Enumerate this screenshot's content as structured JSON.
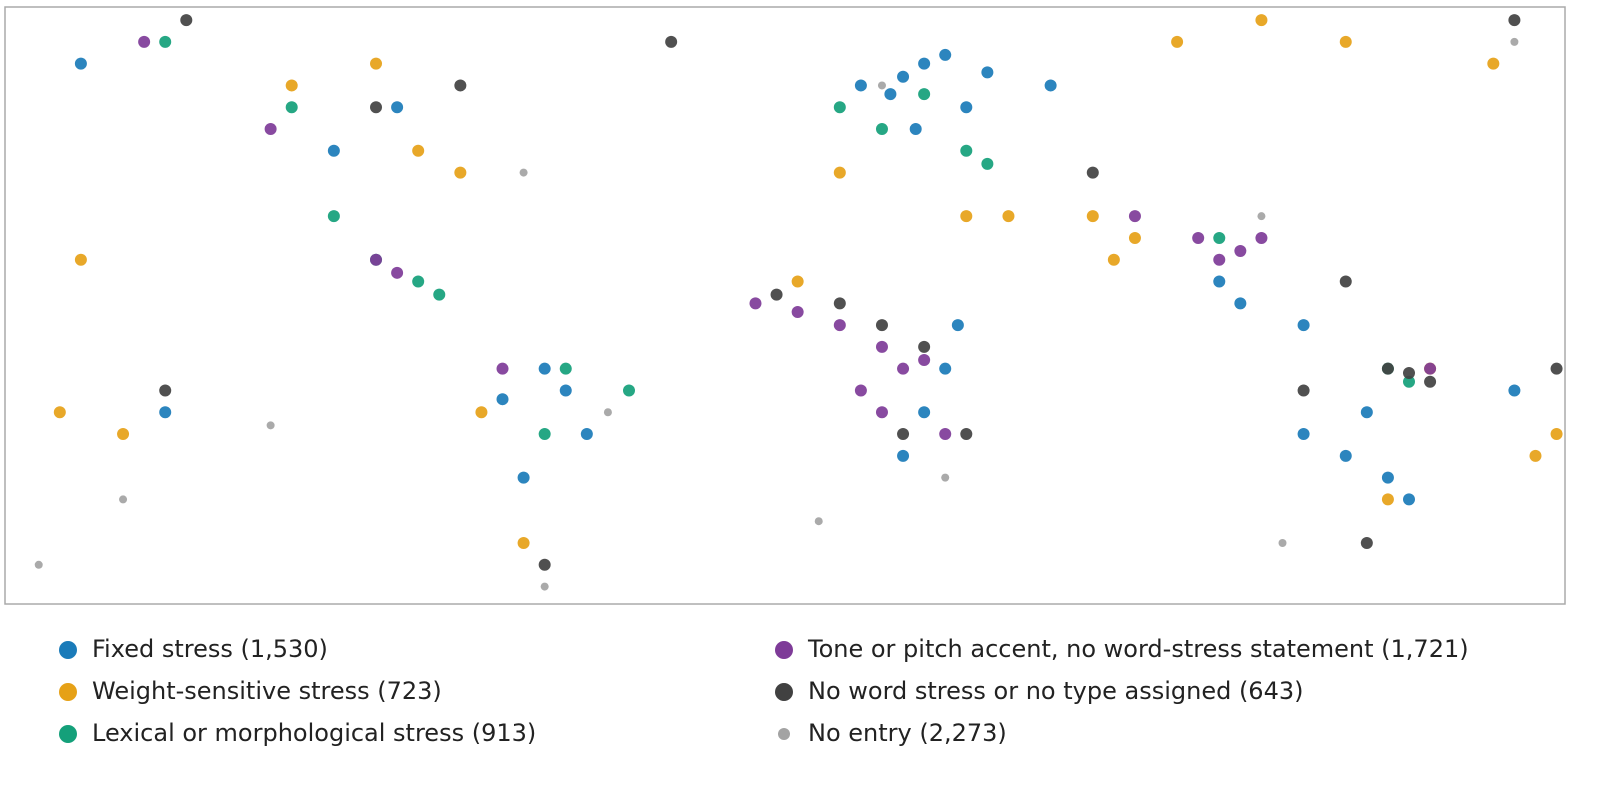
{
  "chart_data": {
    "type": "scatter",
    "xlim": [
      -188,
      182
    ],
    "ylim": [
      -59,
      78
    ],
    "series": [
      {
        "name": "Fixed stress (1,530)",
        "color": "#1a7bb9",
        "size": 6,
        "x": [
          25,
          30,
          22,
          40,
          35,
          15,
          28,
          60,
          45,
          35,
          30,
          38,
          25,
          -60,
          -50,
          -65,
          -55,
          -70,
          130,
          140,
          120,
          135,
          145,
          105,
          100,
          120,
          -150,
          170,
          -110,
          -95,
          -170
        ],
        "y": [
          62,
          65,
          58,
          55,
          67,
          60,
          50,
          60,
          63,
          -5,
          -15,
          5,
          -25,
          -5,
          -20,
          -30,
          -10,
          -12,
          -25,
          -30,
          -20,
          -15,
          -35,
          10,
          15,
          5,
          -15,
          -10,
          45,
          55,
          65
        ]
      },
      {
        "name": "Weight-sensitive stress (723)",
        "color": "#e6a117",
        "size": 6,
        "x": [
          -170,
          -160,
          -175,
          -120,
          -100,
          -90,
          40,
          50,
          70,
          75,
          80,
          110,
          130,
          90,
          165,
          175,
          150,
          140,
          -80,
          -75,
          10,
          -65,
          180,
          0
        ],
        "y": [
          20,
          -20,
          -15,
          60,
          65,
          45,
          30,
          30,
          30,
          20,
          25,
          75,
          70,
          70,
          65,
          -25,
          -5,
          -35,
          40,
          -15,
          40,
          -45,
          -20,
          15
        ]
      },
      {
        "name": "Lexical or morphological stress (913)",
        "color": "#14a07a",
        "size": 6,
        "x": [
          -100,
          -90,
          -110,
          -85,
          10,
          20,
          40,
          45,
          30,
          -60,
          -55,
          140,
          145,
          -40,
          100,
          -150,
          -120
        ],
        "y": [
          20,
          15,
          30,
          12,
          55,
          50,
          45,
          42,
          58,
          -20,
          -5,
          -5,
          -8,
          -10,
          25,
          70,
          55
        ]
      },
      {
        "name": "Tone or pitch accent, no word-stress statement (1,721)",
        "color": "#7e3b98",
        "size": 6,
        "x": [
          -10,
          0,
          10,
          20,
          25,
          15,
          30,
          100,
          105,
          110,
          95,
          -95,
          -100,
          -70,
          150,
          -125,
          -155,
          35,
          20,
          80
        ],
        "y": [
          10,
          8,
          5,
          0,
          -5,
          -10,
          -3,
          20,
          22,
          25,
          25,
          17,
          20,
          -5,
          -5,
          50,
          70,
          -20,
          -15,
          30
        ]
      },
      {
        "name": "No word stress or no type assigned (643)",
        "color": "#414141",
        "size": 6,
        "x": [
          -5,
          10,
          20,
          30,
          25,
          140,
          145,
          150,
          120,
          130,
          -80,
          -100,
          -30,
          135,
          -60,
          40,
          70,
          -145,
          170,
          -150,
          180
        ],
        "y": [
          12,
          10,
          5,
          0,
          -20,
          -5,
          -6,
          -8,
          -10,
          15,
          60,
          55,
          70,
          -45,
          -50,
          -20,
          40,
          75,
          75,
          -10,
          -5
        ]
      },
      {
        "name": "No entry (2,273)",
        "color": "#a3a3a3",
        "size": 4,
        "x": [
          -160,
          -125,
          35,
          -45,
          110,
          -60,
          170,
          -180,
          20,
          5,
          -65,
          115
        ],
        "y": [
          -35,
          -18,
          -30,
          -15,
          30,
          -55,
          70,
          -50,
          60,
          -40,
          40,
          -45
        ]
      }
    ]
  }
}
